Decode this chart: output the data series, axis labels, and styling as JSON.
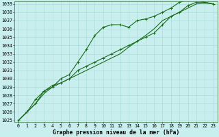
{
  "x": [
    0,
    1,
    2,
    3,
    4,
    5,
    6,
    7,
    8,
    9,
    10,
    11,
    12,
    13,
    14,
    15,
    16,
    17,
    18,
    19,
    20,
    21,
    22,
    23
  ],
  "line1": [
    1025.0,
    1026.0,
    1027.0,
    1028.5,
    1029.0,
    1030.0,
    1030.5,
    1032.0,
    1033.5,
    1035.2,
    1036.2,
    1036.5,
    1036.5,
    1036.2,
    1037.0,
    1037.2,
    1037.5,
    1038.0,
    1038.5,
    1039.2,
    1039.5,
    1039.5,
    1039.2,
    1039.0
  ],
  "line2": [
    1025.0,
    1026.0,
    1027.5,
    1028.5,
    1029.2,
    1029.5,
    1030.0,
    1031.0,
    1031.5,
    1032.0,
    1032.5,
    1033.0,
    1033.5,
    1034.0,
    1034.5,
    1035.0,
    1035.5,
    1036.5,
    1037.5,
    1038.0,
    1038.8,
    1039.2,
    1039.2,
    1039.0
  ],
  "line3": [
    1025.0,
    1026.0,
    1027.0,
    1028.2,
    1029.0,
    1029.5,
    1030.0,
    1030.5,
    1031.0,
    1031.5,
    1032.0,
    1032.5,
    1033.0,
    1033.8,
    1034.5,
    1035.2,
    1036.0,
    1037.0,
    1037.5,
    1038.0,
    1038.5,
    1039.0,
    1039.1,
    1039.0
  ],
  "ylim_min": 1025,
  "ylim_max": 1039,
  "xlim_min": 0,
  "xlim_max": 23,
  "yticks": [
    1025,
    1026,
    1027,
    1028,
    1029,
    1030,
    1031,
    1032,
    1033,
    1034,
    1035,
    1036,
    1037,
    1038,
    1039
  ],
  "xticks": [
    0,
    1,
    2,
    3,
    4,
    5,
    6,
    7,
    8,
    9,
    10,
    11,
    12,
    13,
    14,
    15,
    16,
    17,
    18,
    19,
    20,
    21,
    22,
    23
  ],
  "line_color": "#1a6b1a",
  "bg_color": "#c8eeee",
  "grid_color": "#a8d8d8",
  "title": "Graphe pression niveau de la mer (hPa)",
  "tick_fontsize": 4.8,
  "title_fontsize": 5.8,
  "linewidth": 0.8,
  "markersize": 3.0,
  "markeredgewidth": 0.7
}
